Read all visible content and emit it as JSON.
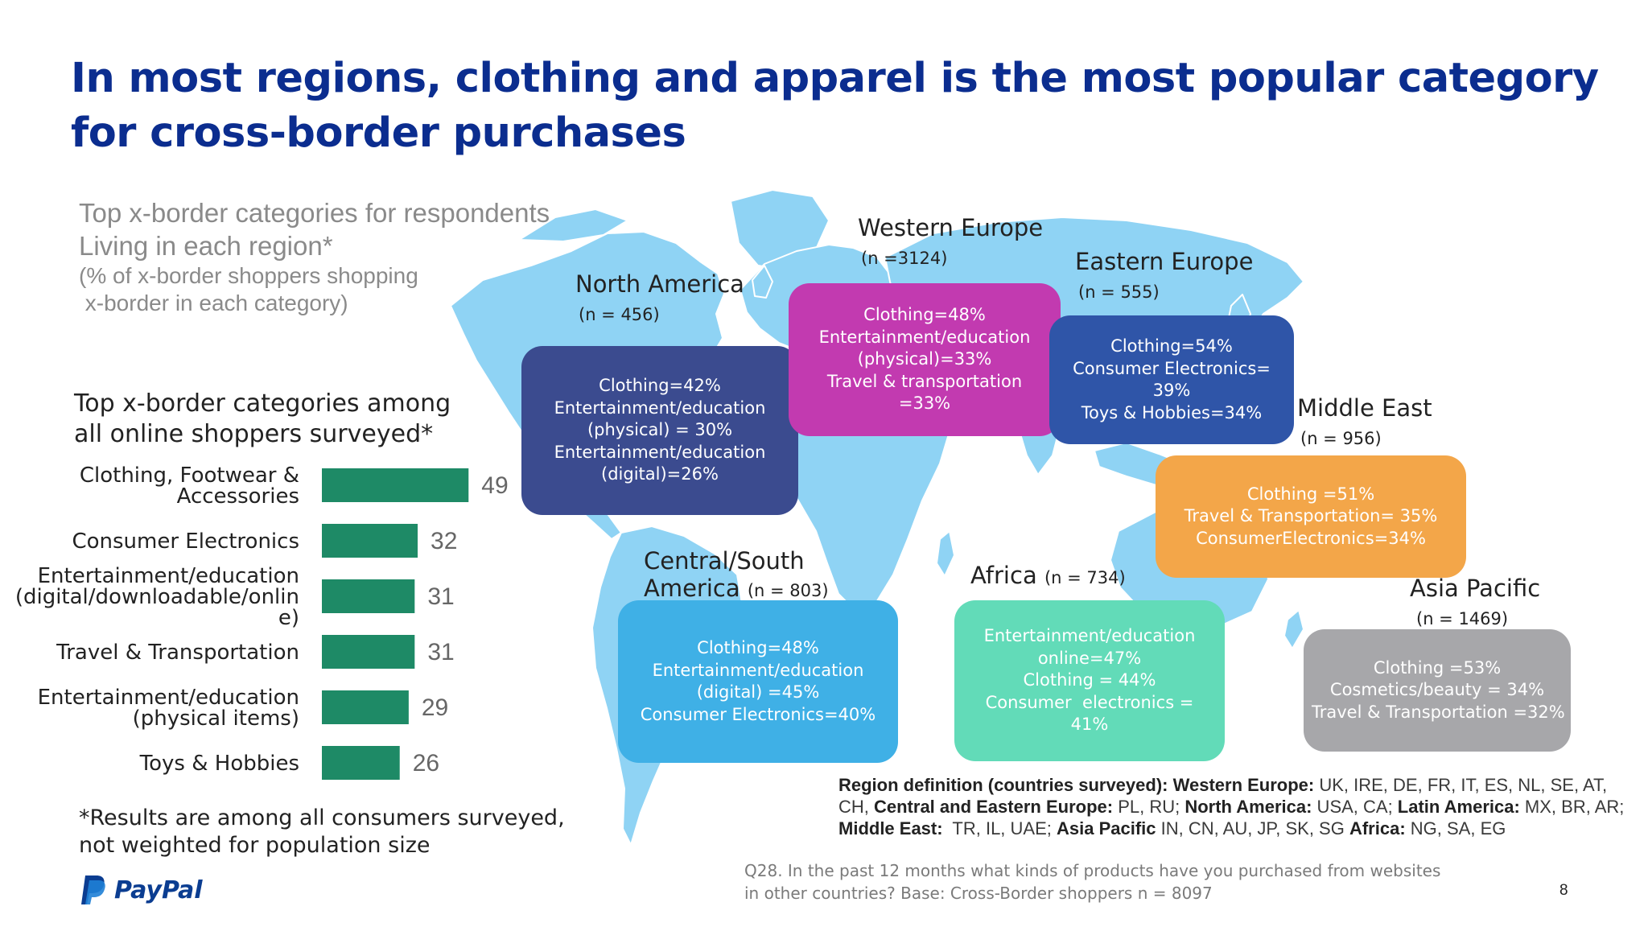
{
  "title": {
    "line1": "In most regions, clothing and apparel is the most popular category",
    "line2": "for cross-border purchases"
  },
  "subtitle": {
    "line1": "Top x-border categories for respondents",
    "line2": "Living in each region*",
    "line3": "(% of x-border shoppers shopping",
    "line4": " x-border in each category)"
  },
  "chart_title": {
    "line1": "Top x-border categories among",
    "line2": "all online shoppers surveyed*"
  },
  "chart_data": {
    "type": "bar",
    "orientation": "horizontal",
    "categories": [
      [
        "Clothing, Footwear &",
        "Accessories"
      ],
      [
        "Consumer Electronics"
      ],
      [
        "Entertainment/education",
        "(digital/downloadable/onlin",
        "e)"
      ],
      [
        "Travel & Transportation"
      ],
      [
        "Entertainment/education",
        "(physical items)"
      ],
      [
        "Toys & Hobbies"
      ]
    ],
    "values": [
      49,
      32,
      31,
      31,
      29,
      26
    ],
    "bar_color": "#1e8a66",
    "value_label_color": "#666666",
    "xlim": [
      0,
      60
    ],
    "grid": false,
    "legend": false
  },
  "footnote": {
    "line1": "*Results are among all consumers surveyed,",
    "line2": "not weighted for population size"
  },
  "logo": {
    "text": "PayPal",
    "icon": "paypal-logo-icon"
  },
  "map_icon": "world-map",
  "regions": {
    "north_america": {
      "name": "North America",
      "n": "(n = 456)",
      "lines": [
        "Clothing=42%",
        "Entertainment/education",
        "(physical) = 30%",
        "Entertainment/education",
        "(digital)=26%"
      ],
      "color": "#3b4b8f"
    },
    "western_europe": {
      "name": "Western Europe",
      "n": "(n =3124)",
      "lines": [
        "Clothing=48%",
        "Entertainment/education",
        "(physical)=33%",
        "Travel & transportation",
        "=33%"
      ],
      "color": "#c23ab0"
    },
    "eastern_europe": {
      "name": "Eastern Europe",
      "n": "(n = 555)",
      "lines": [
        "Clothing=54%",
        "Consumer Electronics=",
        "39%",
        "Toys & Hobbies=34%"
      ],
      "color": "#2f55a8"
    },
    "middle_east": {
      "name": "Middle East",
      "n": "(n = 956)",
      "lines": [
        "Clothing =51%",
        "Travel & Transportation= 35%",
        "ConsumerElectronics=34%"
      ],
      "color": "#f3a649"
    },
    "central_south_america": {
      "name1": "Central/South",
      "name2": "America",
      "n": "(n = 803)",
      "lines": [
        "Clothing=48%",
        "Entertainment/education",
        "(digital) =45%",
        "Consumer Electronics=40%"
      ],
      "color": "#3fb0e6"
    },
    "africa": {
      "name": "Africa",
      "n": "(n = 734)",
      "lines": [
        "Entertainment/education",
        "online=47%",
        "Clothing = 44%",
        "Consumer  electronics =",
        "41%"
      ],
      "color": "#62dbb8"
    },
    "asia_pacific": {
      "name": "Asia Pacific",
      "n": "(n = 1469)",
      "lines": [
        "Clothing =53%",
        "Cosmetics/beauty = 34%",
        "Travel & Transportation =32%"
      ],
      "color": "#a7a7aa"
    }
  },
  "region_definition": {
    "label": "Region definition (countries surveyed):",
    "we_label": "Western Europe:",
    "we": " UK, IRE, DE, FR, IT, ES, NL, SE, AT, CH, ",
    "cee_label": "Central and Eastern Europe:",
    "cee": " PL, RU; ",
    "na_label": "North America:",
    "na": " USA, CA; ",
    "la_label": "Latin America:",
    "la": " MX, BR, AR; ",
    "me_label": "Middle East:",
    "me": "  TR, IL, UAE; ",
    "ap_label": "Asia Pacific",
    "ap": " IN, CN, AU, JP, SK, SG ",
    "af_label": "Africa:",
    "af": " NG, SA, EG"
  },
  "question": {
    "line1": "Q28. In the past 12 months what kinds of products have you purchased from websites",
    "line2": "in other countries? Base: Cross-Border shoppers n = 8097"
  },
  "page_number": "8"
}
